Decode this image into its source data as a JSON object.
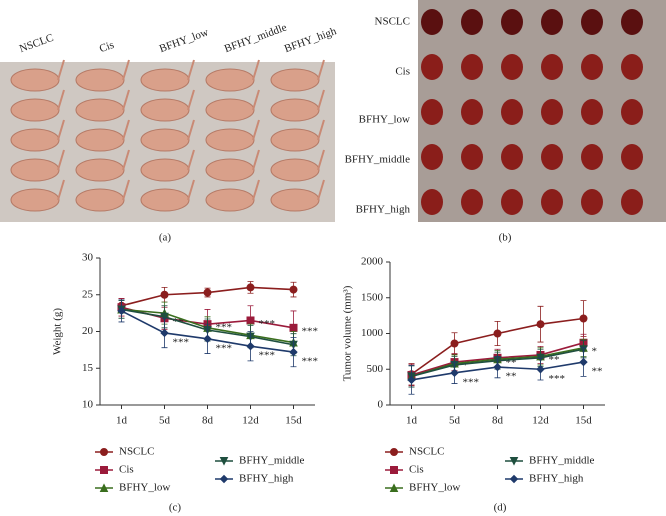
{
  "photo_a": {
    "labels": [
      "NSCLC",
      "Cis",
      "BFHY_low",
      "BFHY_middle",
      "BFHY_high"
    ],
    "caption": "(a)"
  },
  "photo_b": {
    "labels": [
      "NSCLC",
      "Cis",
      "BFHY_low",
      "BFHY_middle",
      "BFHY_high"
    ],
    "caption": "(b)"
  },
  "chart_data": [
    {
      "type": "line",
      "caption": "(c)",
      "y_label": "Weight (g)",
      "categories": [
        "1d",
        "5d",
        "8d",
        "12d",
        "15d"
      ],
      "ylim": [
        10,
        30
      ],
      "yticks": [
        10,
        15,
        20,
        25,
        30
      ],
      "series": [
        {
          "name": "NSCLC",
          "color": "#8b1e1e",
          "marker": "circle",
          "values": [
            23.5,
            25,
            25.3,
            26,
            25.7
          ],
          "errors": [
            1,
            1,
            0.6,
            0.8,
            1
          ],
          "significance": [
            null,
            null,
            null,
            null,
            null
          ]
        },
        {
          "name": "Cis",
          "color": "#9b1b3b",
          "marker": "square",
          "values": [
            23.3,
            21.8,
            21,
            21.5,
            20.5
          ],
          "errors": [
            1.2,
            1.5,
            2,
            2,
            2.3
          ],
          "significance": [
            null,
            "**",
            "***",
            "***",
            "***"
          ]
        },
        {
          "name": "BFHY_low",
          "color": "#3a6e1e",
          "marker": "triangle-up",
          "values": [
            23,
            22.5,
            20.5,
            19.5,
            18.5
          ],
          "errors": [
            1.2,
            1.5,
            1.5,
            1.5,
            1.5
          ],
          "significance": [
            null,
            null,
            null,
            null,
            null
          ]
        },
        {
          "name": "BFHY_middle",
          "color": "#1f4f3f",
          "marker": "triangle-down",
          "values": [
            23,
            22,
            20.2,
            19.3,
            18.2
          ],
          "errors": [
            1.2,
            1.5,
            1.5,
            1.5,
            1.5
          ],
          "significance": [
            null,
            null,
            null,
            null,
            null
          ]
        },
        {
          "name": "BFHY_high",
          "color": "#1f3a6b",
          "marker": "diamond",
          "values": [
            22.8,
            19.8,
            19,
            18,
            17.2
          ],
          "errors": [
            1.5,
            2,
            2,
            2,
            2
          ],
          "significance": [
            null,
            "***",
            "***",
            "***",
            "***"
          ]
        }
      ]
    },
    {
      "type": "line",
      "caption": "(d)",
      "y_label": "Tumor volume (mm³)",
      "categories": [
        "1d",
        "5d",
        "8d",
        "12d",
        "15d"
      ],
      "ylim": [
        0,
        2000
      ],
      "yticks": [
        0,
        500,
        1000,
        1500,
        2000
      ],
      "series": [
        {
          "name": "NSCLC",
          "color": "#8b1e1e",
          "marker": "circle",
          "values": [
            430,
            860,
            1000,
            1130,
            1210
          ],
          "errors": [
            150,
            150,
            170,
            250,
            250
          ],
          "significance": [
            null,
            null,
            null,
            null,
            null
          ]
        },
        {
          "name": "Cis",
          "color": "#9b1b3b",
          "marker": "square",
          "values": [
            420,
            600,
            660,
            700,
            870
          ],
          "errors": [
            150,
            120,
            120,
            120,
            120
          ],
          "significance": [
            null,
            "*",
            null,
            null,
            null
          ]
        },
        {
          "name": "BFHY_low",
          "color": "#3a6e1e",
          "marker": "triangle-up",
          "values": [
            400,
            580,
            640,
            680,
            800
          ],
          "errors": [
            150,
            120,
            120,
            120,
            120
          ],
          "significance": [
            null,
            null,
            "**",
            "**",
            "*"
          ]
        },
        {
          "name": "BFHY_middle",
          "color": "#1f4f3f",
          "marker": "triangle-down",
          "values": [
            400,
            560,
            620,
            660,
            780
          ],
          "errors": [
            150,
            120,
            120,
            120,
            120
          ],
          "significance": [
            null,
            null,
            null,
            null,
            null
          ]
        },
        {
          "name": "BFHY_high",
          "color": "#1f3a6b",
          "marker": "diamond",
          "values": [
            350,
            450,
            530,
            500,
            600
          ],
          "errors": [
            200,
            150,
            150,
            150,
            200
          ],
          "significance": [
            null,
            "***",
            "**",
            "***",
            "**"
          ]
        }
      ]
    }
  ]
}
